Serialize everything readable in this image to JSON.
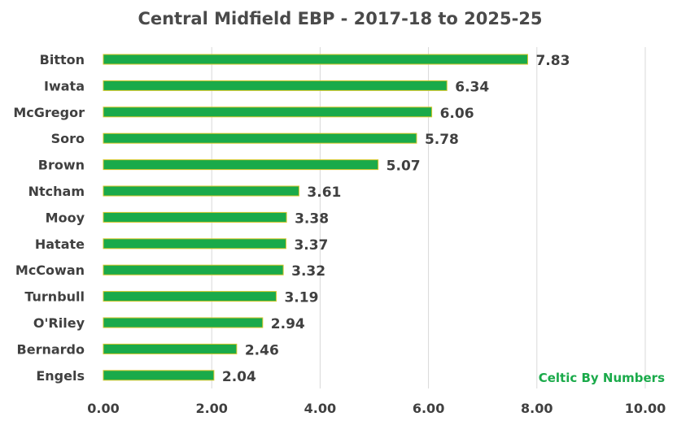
{
  "chart_data": {
    "type": "bar",
    "orientation": "horizontal",
    "title": "Central Midfield EBP - 2017-18 to 2025-25",
    "xlabel": "",
    "ylabel": "",
    "categories": [
      "Bitton",
      "Iwata",
      "McGregor",
      "Soro",
      "Brown",
      "Ntcham",
      "Mooy",
      "Hatate",
      "McCowan",
      "Turnbull",
      "O'Riley",
      "Bernardo",
      "Engels"
    ],
    "values": [
      7.83,
      6.34,
      6.06,
      5.78,
      5.07,
      3.61,
      3.38,
      3.37,
      3.32,
      3.19,
      2.94,
      2.46,
      2.04
    ],
    "value_labels": [
      "7.83",
      "6.34",
      "6.06",
      "5.78",
      "5.07",
      "3.61",
      "3.38",
      "3.37",
      "3.32",
      "3.19",
      "2.94",
      "2.46",
      "2.04"
    ],
    "xlim": [
      0,
      10
    ],
    "x_ticks": [
      0,
      2,
      4,
      6,
      8,
      10
    ],
    "x_tick_labels": [
      "0.00",
      "2.00",
      "4.00",
      "6.00",
      "8.00",
      "10.00"
    ],
    "grid": "vertical",
    "legend": "none",
    "colors": {
      "bar_fill": "#1aaa4a",
      "bar_edge": "#d4c62a",
      "watermark": "#1aaa4a"
    }
  },
  "watermark": "Celtic By Numbers"
}
